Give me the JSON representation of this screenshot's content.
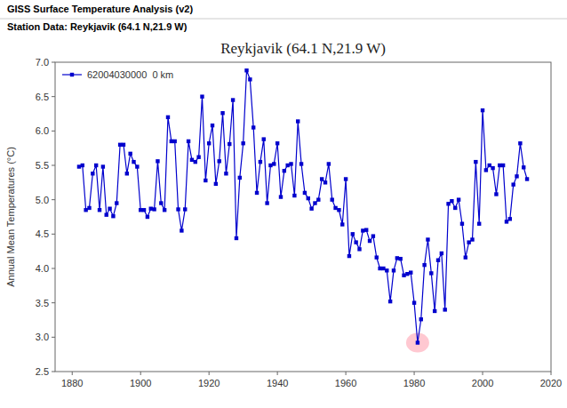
{
  "chart_data": {
    "type": "line",
    "title": "Reykjavik (64.1 N,21.9 W)",
    "annotations": [
      "GISS Surface Temperature Analysis (v2)",
      "Station Data: Reykjavik (64.1 N,21.9 W)"
    ],
    "y_label": "Annual Mean Temperatures (°C)",
    "xlim": [
      1875,
      2020
    ],
    "ylim": [
      2.5,
      7.0
    ],
    "xticks": [
      1880,
      1900,
      1920,
      1940,
      1960,
      1980,
      2000,
      2020
    ],
    "yticks": [
      2.5,
      {
        "value": 3.0,
        "label": "3.0"
      },
      3.5,
      {
        "value": 4.0,
        "label": "4.0"
      },
      4.5,
      {
        "value": 5.0,
        "label": "5.0"
      },
      5.5,
      {
        "value": 6.0,
        "label": "6.0"
      },
      6.5,
      {
        "value": 7.0,
        "label": "7.0"
      }
    ],
    "grid": false,
    "legend": "upper left",
    "x": [
      1882,
      1883,
      1884,
      1885,
      1886,
      1887,
      1888,
      1889,
      1890,
      1891,
      1892,
      1893,
      1894,
      1895,
      1896,
      1897,
      1898,
      1899,
      1900,
      1901,
      1902,
      1903,
      1904,
      1905,
      1906,
      1907,
      1908,
      1909,
      1910,
      1911,
      1912,
      1913,
      1914,
      1915,
      1916,
      1917,
      1918,
      1919,
      1920,
      1921,
      1922,
      1923,
      1924,
      1925,
      1926,
      1927,
      1928,
      1929,
      1930,
      1931,
      1932,
      1933,
      1934,
      1935,
      1936,
      1937,
      1938,
      1939,
      1940,
      1941,
      1942,
      1943,
      1944,
      1945,
      1946,
      1947,
      1948,
      1949,
      1950,
      1951,
      1952,
      1953,
      1954,
      1955,
      1956,
      1957,
      1958,
      1959,
      1960,
      1961,
      1962,
      1963,
      1964,
      1965,
      1966,
      1967,
      1968,
      1969,
      1970,
      1971,
      1972,
      1973,
      1974,
      1975,
      1976,
      1977,
      1978,
      1979,
      1980,
      1981,
      1982,
      1983,
      1984,
      1985,
      1986,
      1987,
      1988,
      1989,
      1990,
      1991,
      1992,
      1993,
      1994,
      1995,
      1996,
      1997,
      1998,
      1999,
      2000,
      2001,
      2002,
      2003,
      2004,
      2005,
      2006,
      2007,
      2008,
      2009,
      2010,
      2011,
      2012,
      2013
    ],
    "series": [
      {
        "name": "62004030000  0 km",
        "color": "#0000CD",
        "marker": "square",
        "values": [
          5.48,
          5.5,
          4.85,
          4.88,
          5.38,
          5.5,
          4.85,
          5.48,
          4.78,
          4.87,
          4.76,
          4.95,
          5.8,
          5.8,
          5.38,
          5.67,
          5.55,
          5.48,
          4.85,
          4.85,
          4.75,
          4.87,
          4.86,
          5.56,
          4.95,
          4.85,
          6.2,
          5.85,
          5.85,
          4.86,
          4.55,
          4.86,
          5.85,
          5.58,
          5.55,
          5.62,
          6.5,
          5.28,
          5.82,
          6.08,
          5.23,
          5.56,
          6.26,
          5.38,
          5.81,
          6.45,
          4.44,
          5.32,
          5.82,
          6.88,
          6.75,
          6.05,
          5.1,
          5.55,
          5.88,
          4.95,
          5.5,
          5.52,
          5.82,
          5.04,
          5.42,
          5.5,
          5.52,
          5.06,
          6.14,
          5.52,
          5.1,
          5.02,
          4.87,
          4.95,
          5.0,
          5.3,
          5.25,
          5.52,
          5.0,
          4.88,
          4.85,
          4.64,
          5.3,
          4.18,
          4.5,
          4.38,
          4.28,
          4.55,
          4.56,
          4.4,
          4.47,
          4.16,
          4.0,
          4.0,
          3.97,
          3.52,
          3.97,
          4.15,
          4.14,
          3.9,
          3.92,
          3.94,
          3.5,
          2.92,
          3.26,
          4.05,
          4.42,
          3.93,
          3.38,
          4.12,
          4.22,
          3.4,
          4.94,
          4.98,
          4.88,
          5.0,
          4.65,
          4.16,
          4.38,
          4.42,
          5.55,
          4.65,
          6.3,
          5.43,
          5.5,
          5.46,
          5.08,
          5.5,
          5.5,
          4.68,
          4.72,
          5.22,
          5.34,
          5.82,
          5.47,
          5.3
        ]
      }
    ],
    "highlight": {
      "x": 1981,
      "y": 2.92,
      "color": "#FFB6C1"
    }
  }
}
